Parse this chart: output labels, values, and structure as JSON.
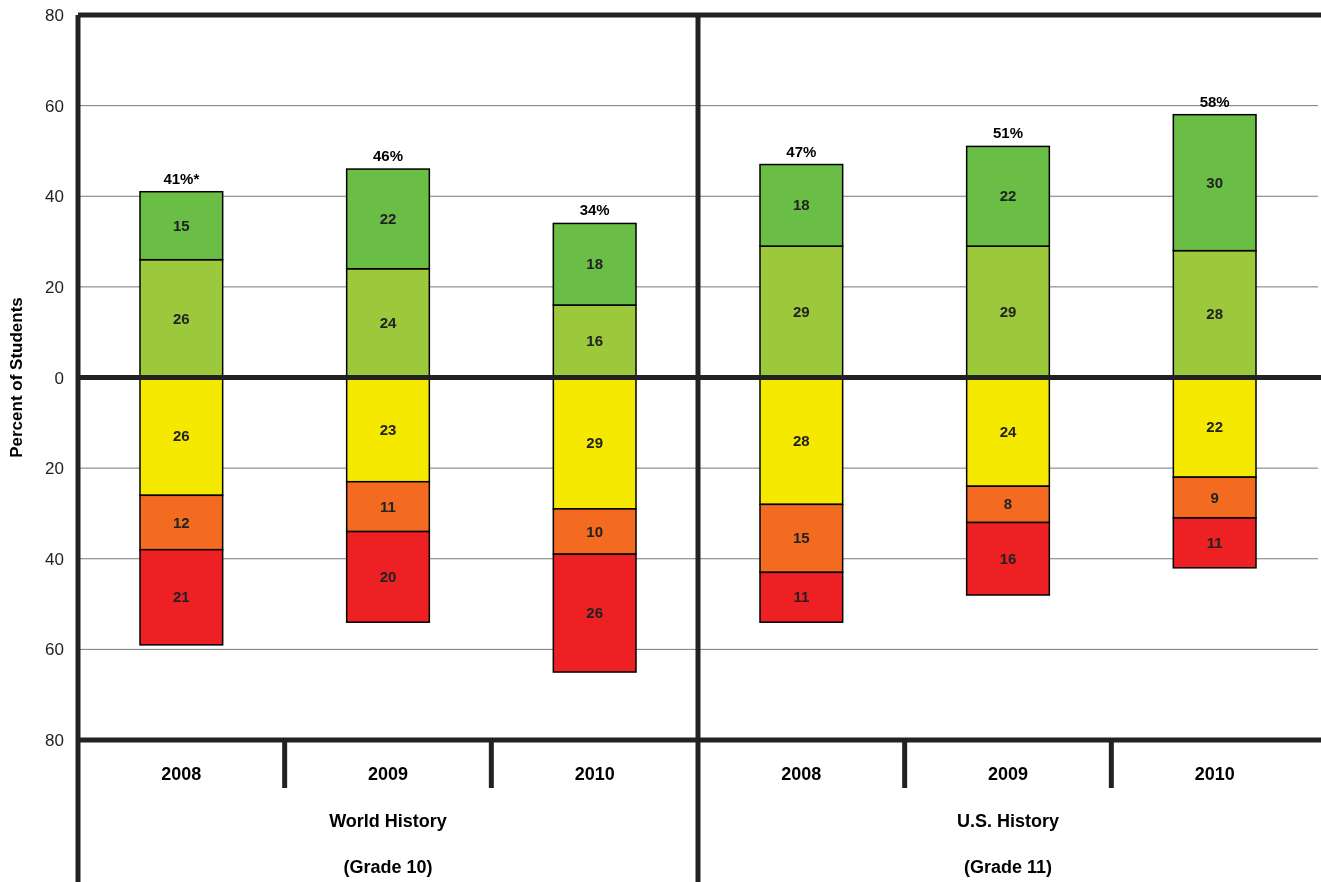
{
  "chart_data": {
    "type": "bar",
    "ylabel": "Percent of Students",
    "categories": [
      "2008",
      "2009",
      "2010",
      "2008",
      "2009",
      "2010"
    ],
    "series": [
      {
        "color": "#9cc93b",
        "values": [
          26,
          24,
          16,
          29,
          29,
          28
        ],
        "base": [
          0,
          0,
          0,
          0,
          0,
          0
        ]
      },
      {
        "color": "#6abd45",
        "values": [
          15,
          22,
          18,
          18,
          22,
          30
        ],
        "base": [
          26,
          24,
          16,
          29,
          29,
          28
        ]
      },
      {
        "color": "#f5e900",
        "values": [
          26,
          23,
          29,
          28,
          24,
          22
        ],
        "base": [
          -26,
          -23,
          -29,
          -28,
          -24,
          -22
        ]
      },
      {
        "color": "#f26b21",
        "values": [
          12,
          11,
          10,
          15,
          8,
          9
        ],
        "base": [
          -38,
          -34,
          -39,
          -43,
          -32,
          -31
        ]
      },
      {
        "color": "#ed2024",
        "values": [
          21,
          20,
          26,
          11,
          16,
          11
        ],
        "base": [
          -59,
          -54,
          -65,
          -54,
          -48,
          -42
        ]
      }
    ],
    "data_labels": true,
    "ylim": [
      -80,
      80
    ],
    "yticks": [
      80,
      60,
      40,
      20,
      0,
      {
        "value": -20,
        "label": "20"
      },
      {
        "value": -40,
        "label": "40"
      },
      {
        "value": -60,
        "label": "60"
      },
      {
        "value": -80,
        "label": "80"
      }
    ],
    "grid": "y",
    "annotations": [
      "41%*",
      "46%",
      "34%",
      "47%",
      "51%",
      "58%",
      "World History",
      "(Grade 10)",
      "U.S. History",
      "(Grade 11)"
    ]
  }
}
